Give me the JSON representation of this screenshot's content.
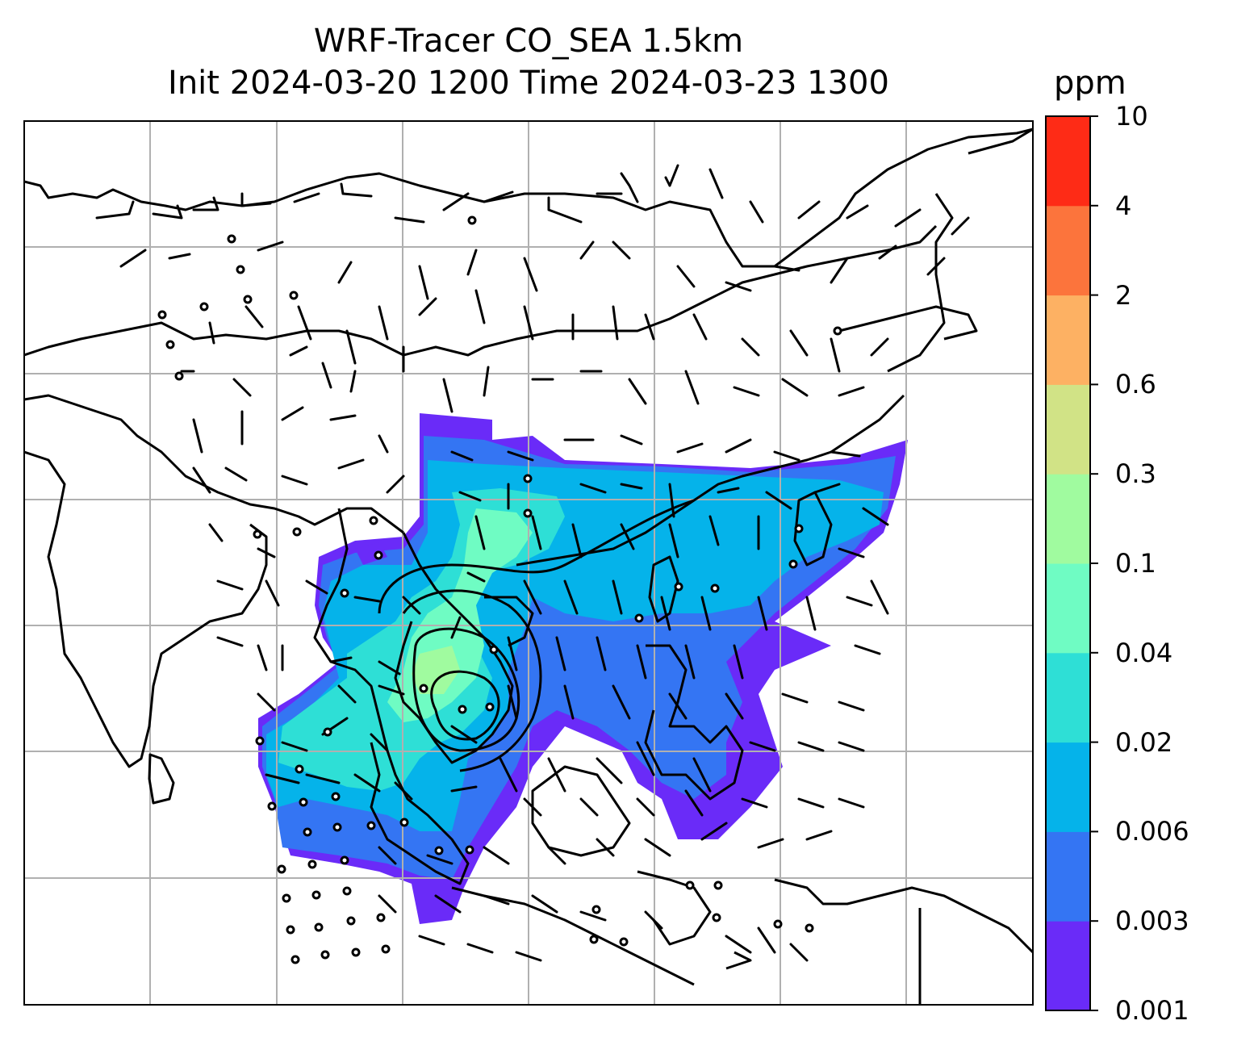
{
  "title": {
    "line1": "WRF-Tracer CO_SEA 1.5km",
    "line2": "Init 2024-03-20 1200 Time 2024-03-23 1300"
  },
  "colorbar": {
    "unit": "ppm",
    "levels": [
      "0.001",
      "0.003",
      "0.006",
      "0.02",
      "0.04",
      "0.1",
      "0.3",
      "0.6",
      "2",
      "4",
      "10"
    ],
    "colors": [
      "#6a2bf8",
      "#3475f3",
      "#05b3ea",
      "#2edfd6",
      "#6ffcc3",
      "#a0fb9f",
      "#d1e386",
      "#fdb163",
      "#fc743c",
      "#fe2b16"
    ]
  },
  "map": {
    "gridlines": true,
    "features": [
      "coastlines",
      "country-borders",
      "wind-barbs",
      "contours",
      "co-tracer-shading"
    ]
  }
}
